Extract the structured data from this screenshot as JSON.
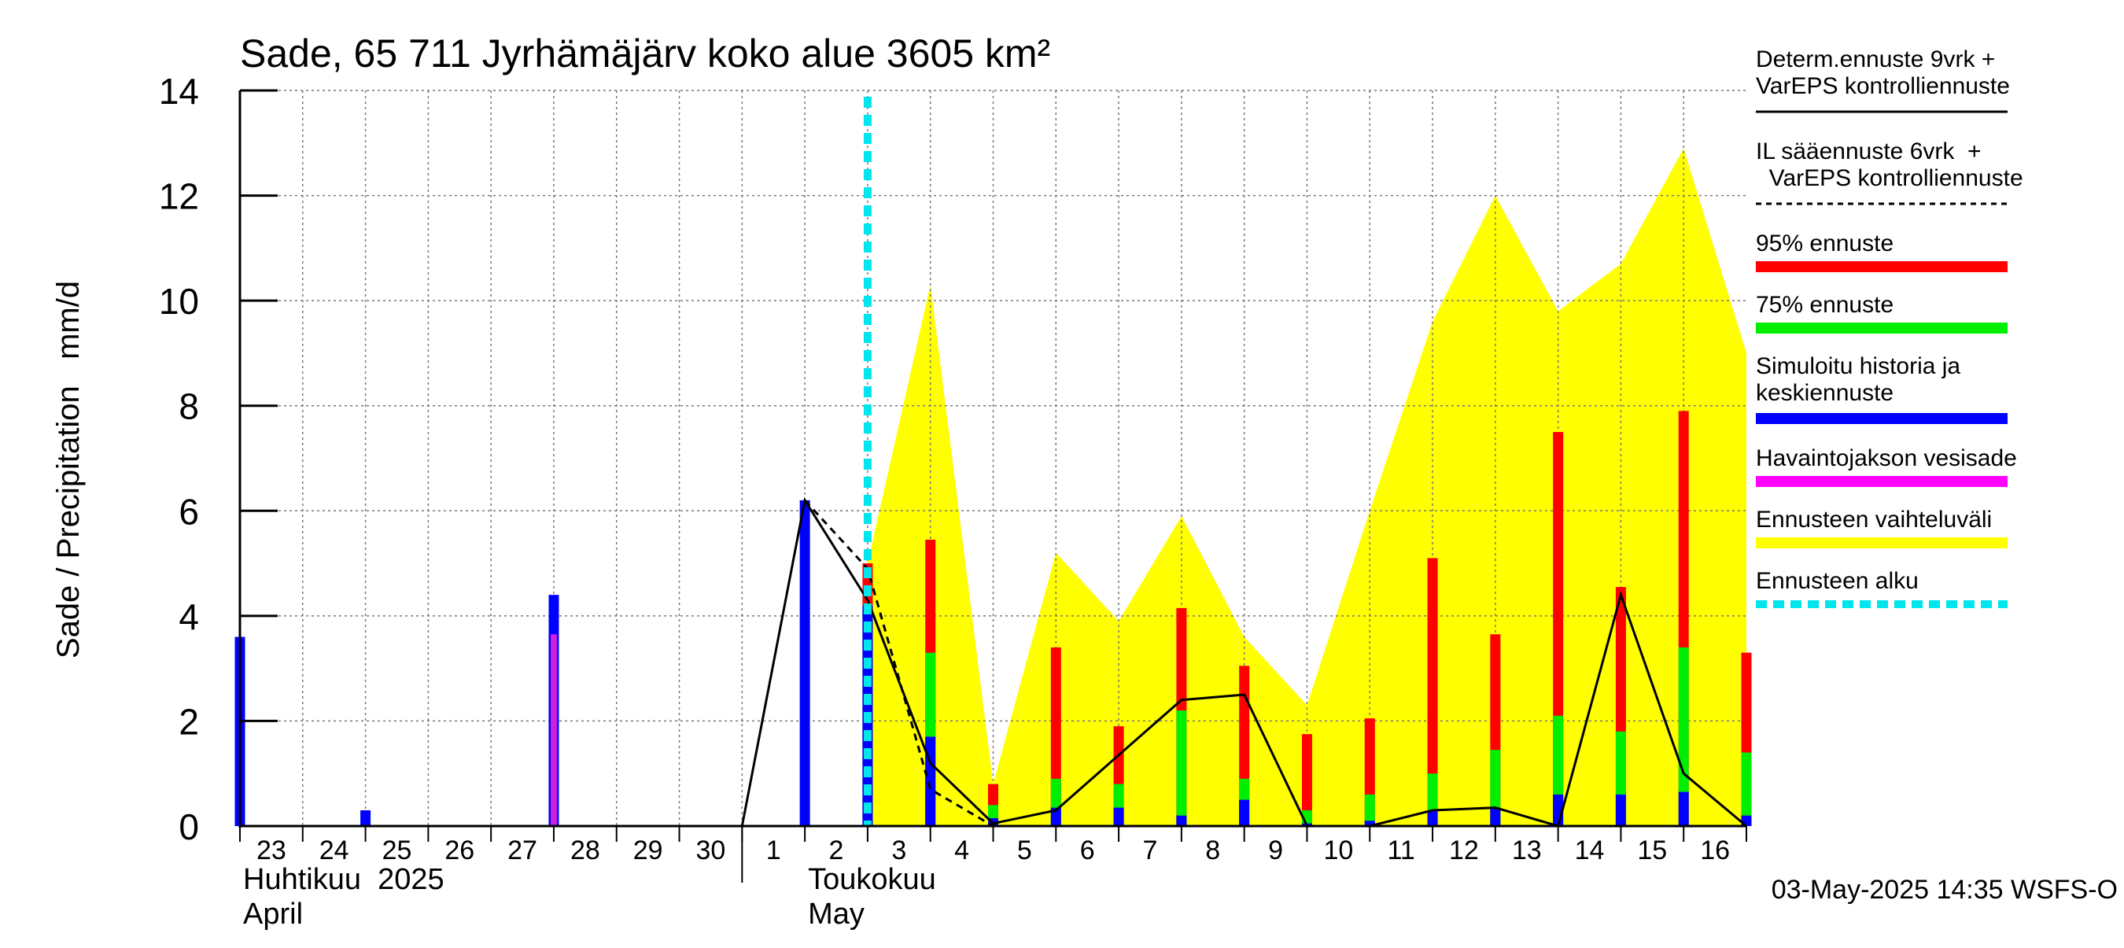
{
  "chart_data": {
    "type": "bar",
    "title": "Sade, 65 711 Jyrhämäjärv koko alue 3605 km²",
    "ylabel": "Sade / Precipitation   mm/d",
    "ylim": [
      0,
      14
    ],
    "yticks": [
      0,
      2,
      4,
      6,
      8,
      10,
      12,
      14
    ],
    "grid": true,
    "x_start": "2025-04-23",
    "x_end": "2025-05-17",
    "day_labels": [
      {
        "date": "2025-04-23",
        "label": "23"
      },
      {
        "date": "2025-04-24",
        "label": "24"
      },
      {
        "date": "2025-04-25",
        "label": "25"
      },
      {
        "date": "2025-04-26",
        "label": "26"
      },
      {
        "date": "2025-04-27",
        "label": "27"
      },
      {
        "date": "2025-04-28",
        "label": "28"
      },
      {
        "date": "2025-04-29",
        "label": "29"
      },
      {
        "date": "2025-04-30",
        "label": "30"
      },
      {
        "date": "2025-05-01",
        "label": "1"
      },
      {
        "date": "2025-05-02",
        "label": "2"
      },
      {
        "date": "2025-05-03",
        "label": "3"
      },
      {
        "date": "2025-05-04",
        "label": "4"
      },
      {
        "date": "2025-05-05",
        "label": "5"
      },
      {
        "date": "2025-05-06",
        "label": "6"
      },
      {
        "date": "2025-05-07",
        "label": "7"
      },
      {
        "date": "2025-05-08",
        "label": "8"
      },
      {
        "date": "2025-05-09",
        "label": "9"
      },
      {
        "date": "2025-05-10",
        "label": "10"
      },
      {
        "date": "2025-05-11",
        "label": "11"
      },
      {
        "date": "2025-05-12",
        "label": "12"
      },
      {
        "date": "2025-05-13",
        "label": "13"
      },
      {
        "date": "2025-05-14",
        "label": "14"
      },
      {
        "date": "2025-05-15",
        "label": "15"
      },
      {
        "date": "2025-05-16",
        "label": "16"
      }
    ],
    "month_labels": [
      {
        "date": "2025-04-23",
        "line1": "Huhtikuu  2025",
        "line2": "April"
      },
      {
        "date": "2025-05-02",
        "line1": "Toukokuu",
        "line2": "May"
      }
    ],
    "month_separator_date": "2025-05-01",
    "forecast_start_date": "2025-05-03",
    "variation_range": {
      "dates": [
        "2025-05-03",
        "2025-05-04",
        "2025-05-05",
        "2025-05-06",
        "2025-05-07",
        "2025-05-08",
        "2025-05-09",
        "2025-05-10",
        "2025-05-11",
        "2025-05-12",
        "2025-05-13",
        "2025-05-14",
        "2025-05-15",
        "2025-05-16",
        "2025-05-17"
      ],
      "values": [
        5.0,
        10.3,
        0.8,
        5.2,
        3.9,
        5.9,
        3.6,
        2.3,
        6.0,
        9.6,
        12.0,
        9.8,
        10.7,
        12.9,
        9.0
      ]
    },
    "history_bars": [
      {
        "date": "2025-04-23",
        "simulated": 3.6,
        "observed": 0
      },
      {
        "date": "2025-04-25",
        "simulated": 0.3,
        "observed": 0
      },
      {
        "date": "2025-04-28",
        "simulated": 4.4,
        "observed": 3.65
      },
      {
        "date": "2025-05-02",
        "simulated": 6.2,
        "observed": 0
      }
    ],
    "forecast_bars": [
      {
        "date": "2025-05-03",
        "mean": 4.2,
        "p75": 4.2,
        "p95": 5.0
      },
      {
        "date": "2025-05-04",
        "mean": 1.7,
        "p75": 3.3,
        "p95": 5.45
      },
      {
        "date": "2025-05-05",
        "mean": 0.15,
        "p75": 0.4,
        "p95": 0.8
      },
      {
        "date": "2025-05-06",
        "mean": 0.35,
        "p75": 0.9,
        "p95": 3.4
      },
      {
        "date": "2025-05-07",
        "mean": 0.35,
        "p75": 0.8,
        "p95": 1.9
      },
      {
        "date": "2025-05-08",
        "mean": 0.2,
        "p75": 2.2,
        "p95": 4.15
      },
      {
        "date": "2025-05-09",
        "mean": 0.5,
        "p75": 0.9,
        "p95": 3.05
      },
      {
        "date": "2025-05-10",
        "mean": 0.05,
        "p75": 0.3,
        "p95": 1.75
      },
      {
        "date": "2025-05-11",
        "mean": 0.1,
        "p75": 0.6,
        "p95": 2.05
      },
      {
        "date": "2025-05-12",
        "mean": 0.3,
        "p75": 1.0,
        "p95": 5.1
      },
      {
        "date": "2025-05-13",
        "mean": 0.35,
        "p75": 1.45,
        "p95": 3.65
      },
      {
        "date": "2025-05-14",
        "mean": 0.6,
        "p75": 2.1,
        "p95": 7.5
      },
      {
        "date": "2025-05-15",
        "mean": 0.6,
        "p75": 1.8,
        "p95": 4.55
      },
      {
        "date": "2025-05-16",
        "mean": 0.65,
        "p75": 3.4,
        "p95": 7.9
      },
      {
        "date": "2025-05-17",
        "mean": 0.2,
        "p75": 1.4,
        "p95": 3.3
      }
    ],
    "series": [
      {
        "name": "Determ.ennuste 9vrk + VarEPS kontrolliennuste",
        "dates": [
          "2025-05-01",
          "2025-05-02",
          "2025-05-03",
          "2025-05-04",
          "2025-05-05",
          "2025-05-06",
          "2025-05-07",
          "2025-05-08",
          "2025-05-09",
          "2025-05-10",
          "2025-05-11",
          "2025-05-12",
          "2025-05-13",
          "2025-05-14",
          "2025-05-15",
          "2025-05-16",
          "2025-05-17"
        ],
        "values": [
          0,
          6.2,
          4.3,
          1.2,
          0.05,
          0.3,
          1.35,
          2.4,
          2.5,
          0,
          0,
          0.3,
          0.35,
          0,
          4.4,
          1.0,
          0
        ]
      },
      {
        "name": "IL sääennuste 6vrk + VarEPS kontrolliennuste",
        "dates": [
          "2025-05-02",
          "2025-05-03",
          "2025-05-04",
          "2025-05-05",
          "2025-05-06",
          "2025-05-07",
          "2025-05-08",
          "2025-05-09",
          "2025-05-10",
          "2025-05-11",
          "2025-05-12"
        ],
        "values": [
          6.2,
          4.9,
          0.7,
          0,
          0,
          0,
          0,
          0,
          0,
          0,
          0
        ]
      }
    ],
    "legend": {
      "placement": "right",
      "items": [
        {
          "line1": "Determ.ennuste 9vrk +",
          "line2": "VarEPS kontrolliennuste",
          "style": "solid-thin",
          "color": "#000000"
        },
        {
          "line1": "IL sääennuste 6vrk  +",
          "line2": "  VarEPS kontrolliennuste",
          "style": "dashed-thin",
          "color": "#000000"
        },
        {
          "line1": "95% ennuste",
          "line2": "",
          "style": "thick",
          "color": "#ff0000"
        },
        {
          "line1": "75% ennuste",
          "line2": "",
          "style": "thick",
          "color": "#00ee00"
        },
        {
          "line1": "Simuloitu historia ja",
          "line2": "keskiennuste",
          "style": "thick",
          "color": "#0000ff"
        },
        {
          "line1": "Havaintojakson vesisade",
          "line2": "",
          "style": "thick",
          "color": "#ff00ff"
        },
        {
          "line1": "Ennusteen vaihteluväli",
          "line2": "",
          "style": "thick",
          "color": "#ffff00"
        },
        {
          "line1": "Ennusteen alku",
          "line2": "",
          "style": "dashed-thick",
          "color": "#00e5ee"
        }
      ]
    },
    "footer": "03-May-2025 14:35 WSFS-O",
    "colors": {
      "range": "#ffff00",
      "p95": "#ff0000",
      "p75": "#00ee00",
      "mean": "#0000ff",
      "observed": "#cc22dd",
      "forecast_start": "#00e5ee",
      "grid": "#777777",
      "axis": "#000000"
    }
  }
}
